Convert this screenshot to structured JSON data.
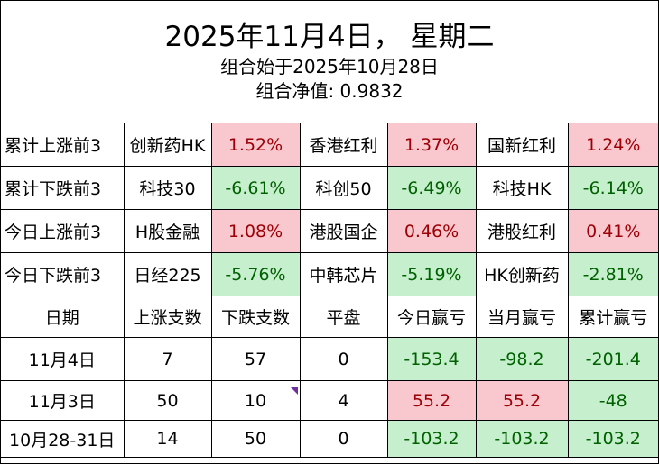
{
  "header": {
    "title": "2025年11月4日，  星期二",
    "start": "组合始于2025年10月28日",
    "nav": "组合净值:  0.9832"
  },
  "rank_rows": [
    {
      "label": "累计上涨前3",
      "items": [
        {
          "name": "创新药HK",
          "value": "1.52%",
          "tone": "pos"
        },
        {
          "name": "香港红利",
          "value": "1.37%",
          "tone": "pos"
        },
        {
          "name": "国新红利",
          "value": "1.24%",
          "tone": "pos"
        }
      ]
    },
    {
      "label": "累计下跌前3",
      "items": [
        {
          "name": "科技30",
          "value": "-6.61%",
          "tone": "neg"
        },
        {
          "name": "科创50",
          "value": "-6.49%",
          "tone": "neg"
        },
        {
          "name": "科技HK",
          "value": "-6.14%",
          "tone": "neg"
        }
      ]
    },
    {
      "label": "今日上涨前3",
      "items": [
        {
          "name": "H股金融",
          "value": "1.08%",
          "tone": "pos"
        },
        {
          "name": "港股国企",
          "value": "0.46%",
          "tone": "pos"
        },
        {
          "name": "港股红利",
          "value": "0.41%",
          "tone": "pos"
        }
      ]
    },
    {
      "label": "今日下跌前3",
      "items": [
        {
          "name": "日经225",
          "value": "-5.76%",
          "tone": "neg"
        },
        {
          "name": "中韩芯片",
          "value": "-5.19%",
          "tone": "neg"
        },
        {
          "name": "HK创新药",
          "value": "-2.81%",
          "tone": "neg"
        }
      ]
    }
  ],
  "daily_headers": [
    "日期",
    "上涨支数",
    "下跌支数",
    "平盘",
    "今日赢亏",
    "当月赢亏",
    "累计赢亏"
  ],
  "daily_rows": [
    {
      "date": "11月4日",
      "up": "7",
      "down": "57",
      "flat": "0",
      "today": "-153.4",
      "today_tone": "neg",
      "month": "-98.2",
      "month_tone": "neg",
      "total": "-201.4",
      "total_tone": "neg"
    },
    {
      "date": "11月3日",
      "up": "50",
      "down": "10",
      "flat": "4",
      "today": "55.2",
      "today_tone": "pos",
      "month": "55.2",
      "month_tone": "pos",
      "total": "-48",
      "total_tone": "neg"
    },
    {
      "date": "10月28-31日",
      "up": "14",
      "down": "50",
      "flat": "0",
      "today": "-103.2",
      "today_tone": "neg",
      "month": "-103.2",
      "month_tone": "neg",
      "total": "-103.2",
      "total_tone": "neg"
    }
  ],
  "colors": {
    "pos_bg": "#f9c7ce",
    "pos_text": "#9c0006",
    "neg_bg": "#c6efce",
    "neg_text": "#006100",
    "comment_mark": "#7030a0"
  }
}
